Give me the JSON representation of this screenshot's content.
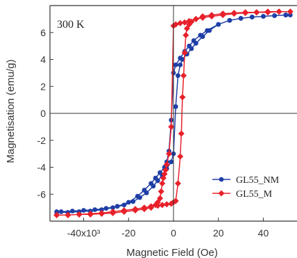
{
  "chart_data": {
    "type": "line",
    "annotation": "300 K",
    "xlabel": "Magnetic Field (Oe)",
    "ylabel": "Magnetisation (emu/g)",
    "xlim": [
      -55,
      55
    ],
    "ylim": [
      -8,
      8
    ],
    "x_tick_values": [
      -40,
      -20,
      0,
      20,
      40
    ],
    "x_tick_labels": [
      "-40x10³",
      "-20",
      "0",
      "20",
      "40"
    ],
    "y_tick_values": [
      6,
      4,
      2,
      0,
      -2,
      -4,
      -6
    ],
    "y_tick_labels": [
      "6",
      "4",
      "2",
      "0",
      "-2",
      "-4",
      "-6"
    ],
    "zero_lines": true,
    "grid": false,
    "legend_position": "lower-right",
    "series": [
      {
        "name": "GL55_NM",
        "color": "#1f3fa6",
        "marker": "circle",
        "x": [
          -52,
          -47,
          -42,
          -37,
          -32,
          -27,
          -22,
          -18,
          -15,
          -12,
          -9,
          -7,
          -5,
          -3,
          -1,
          0,
          1,
          2,
          3,
          4,
          6,
          8,
          10,
          13,
          16,
          20,
          25,
          30,
          35,
          40,
          45,
          50,
          52,
          50,
          45,
          40,
          35,
          30,
          25,
          20,
          15,
          12,
          9,
          7,
          5,
          3,
          1,
          0,
          -1,
          -2,
          -3,
          -4,
          -6,
          -8,
          -10,
          -13,
          -16,
          -20,
          -25,
          -30,
          -35,
          -40,
          -45,
          -50,
          -52
        ],
        "y": [
          -7.35,
          -7.35,
          -7.3,
          -7.25,
          -7.15,
          -7.0,
          -6.8,
          -6.55,
          -6.25,
          -5.9,
          -5.4,
          -5.0,
          -4.6,
          -4.1,
          -3.6,
          -3.0,
          0.5,
          2.8,
          3.6,
          4.0,
          4.4,
          4.8,
          5.2,
          5.7,
          6.15,
          6.6,
          6.9,
          7.05,
          7.15,
          7.2,
          7.25,
          7.3,
          7.3,
          7.3,
          7.25,
          7.2,
          7.15,
          7.05,
          6.9,
          6.6,
          6.15,
          5.8,
          5.4,
          5.0,
          4.6,
          4.1,
          3.6,
          3.0,
          -0.5,
          -2.8,
          -3.6,
          -4.0,
          -4.4,
          -4.8,
          -5.2,
          -5.7,
          -6.15,
          -6.6,
          -6.9,
          -7.05,
          -7.15,
          -7.2,
          -7.25,
          -7.3,
          -7.3
        ]
      },
      {
        "name": "GL55_M",
        "color": "#e8202a",
        "marker": "diamond",
        "x": [
          -52,
          -47,
          -42,
          -37,
          -32,
          -27,
          -22,
          -17,
          -13,
          -10,
          -7,
          -5,
          -3,
          -1,
          0,
          1,
          2,
          3,
          3.5,
          4,
          4.5,
          5,
          5.5,
          6,
          7,
          8,
          10,
          13,
          17,
          22,
          27,
          32,
          37,
          42,
          47,
          52,
          47,
          42,
          37,
          32,
          27,
          22,
          17,
          13,
          10,
          7,
          5,
          3,
          1,
          0,
          -1,
          -2,
          -3,
          -3.5,
          -4,
          -4.5,
          -5,
          -5.5,
          -6,
          -7,
          -8,
          -10,
          -13,
          -17,
          -22,
          -27,
          -32,
          -37,
          -42,
          -47,
          -52
        ],
        "y": [
          -7.55,
          -7.55,
          -7.5,
          -7.45,
          -7.4,
          -7.3,
          -7.2,
          -7.1,
          -7.0,
          -6.9,
          -6.85,
          -6.8,
          -6.75,
          -6.7,
          -6.6,
          -6.5,
          -5.2,
          -3.2,
          -1.5,
          1.2,
          2.8,
          4.5,
          5.8,
          6.3,
          6.6,
          6.8,
          7.0,
          7.2,
          7.3,
          7.4,
          7.45,
          7.5,
          7.5,
          7.55,
          7.55,
          7.55,
          7.55,
          7.5,
          7.5,
          7.45,
          7.4,
          7.3,
          7.2,
          7.1,
          7.0,
          6.85,
          6.75,
          6.7,
          6.6,
          6.5,
          -1.0,
          -3.0,
          -3.8,
          -4.2,
          -4.5,
          -4.8,
          -5.2,
          -5.8,
          -6.3,
          -6.6,
          -6.8,
          -7.0,
          -7.1,
          -7.2,
          -7.3,
          -7.4,
          -7.45,
          -7.5,
          -7.5,
          -7.55,
          -7.55
        ]
      }
    ]
  }
}
